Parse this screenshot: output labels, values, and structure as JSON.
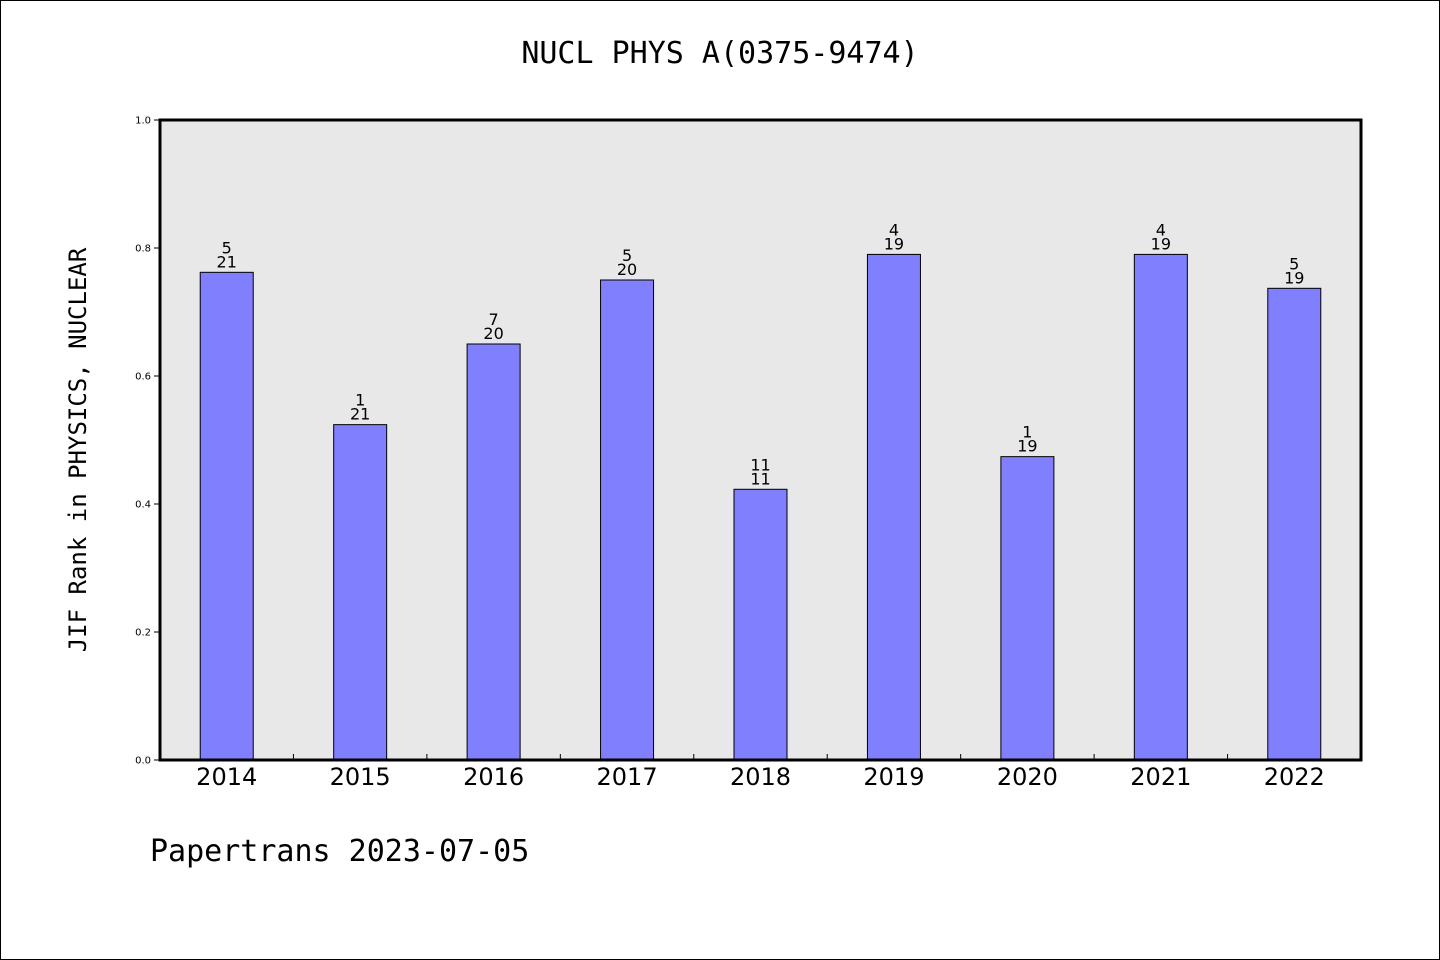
{
  "chart_data": {
    "type": "bar",
    "title": "NUCL PHYS A(0375-9474)",
    "ylabel": "JIF Rank in PHYSICS, NUCLEAR",
    "xlabel": "",
    "categories": [
      "2014",
      "2015",
      "2016",
      "2017",
      "2018",
      "2019",
      "2020",
      "2021",
      "2022"
    ],
    "values": [
      0.762,
      0.524,
      0.65,
      0.75,
      0.423,
      0.79,
      0.474,
      0.79,
      0.737
    ],
    "bar_labels": [
      {
        "rank": "5",
        "total": "21"
      },
      {
        "rank": "1",
        "total": "21"
      },
      {
        "rank": "7",
        "total": "20"
      },
      {
        "rank": "5",
        "total": "20"
      },
      {
        "rank": "11",
        "total": "11"
      },
      {
        "rank": "4",
        "total": "19"
      },
      {
        "rank": "1",
        "total": "19"
      },
      {
        "rank": "4",
        "total": "19"
      },
      {
        "rank": "5",
        "total": "19"
      }
    ],
    "ylim": [
      0,
      1.0
    ],
    "yticks": [
      "0.0",
      "0.2",
      "0.4",
      "0.6",
      "0.8",
      "1.0"
    ],
    "grid": false,
    "colors": {
      "bar": "#8080ff",
      "plot_background": "#e8e8e8"
    }
  },
  "footer": "Papertrans 2023-07-05"
}
